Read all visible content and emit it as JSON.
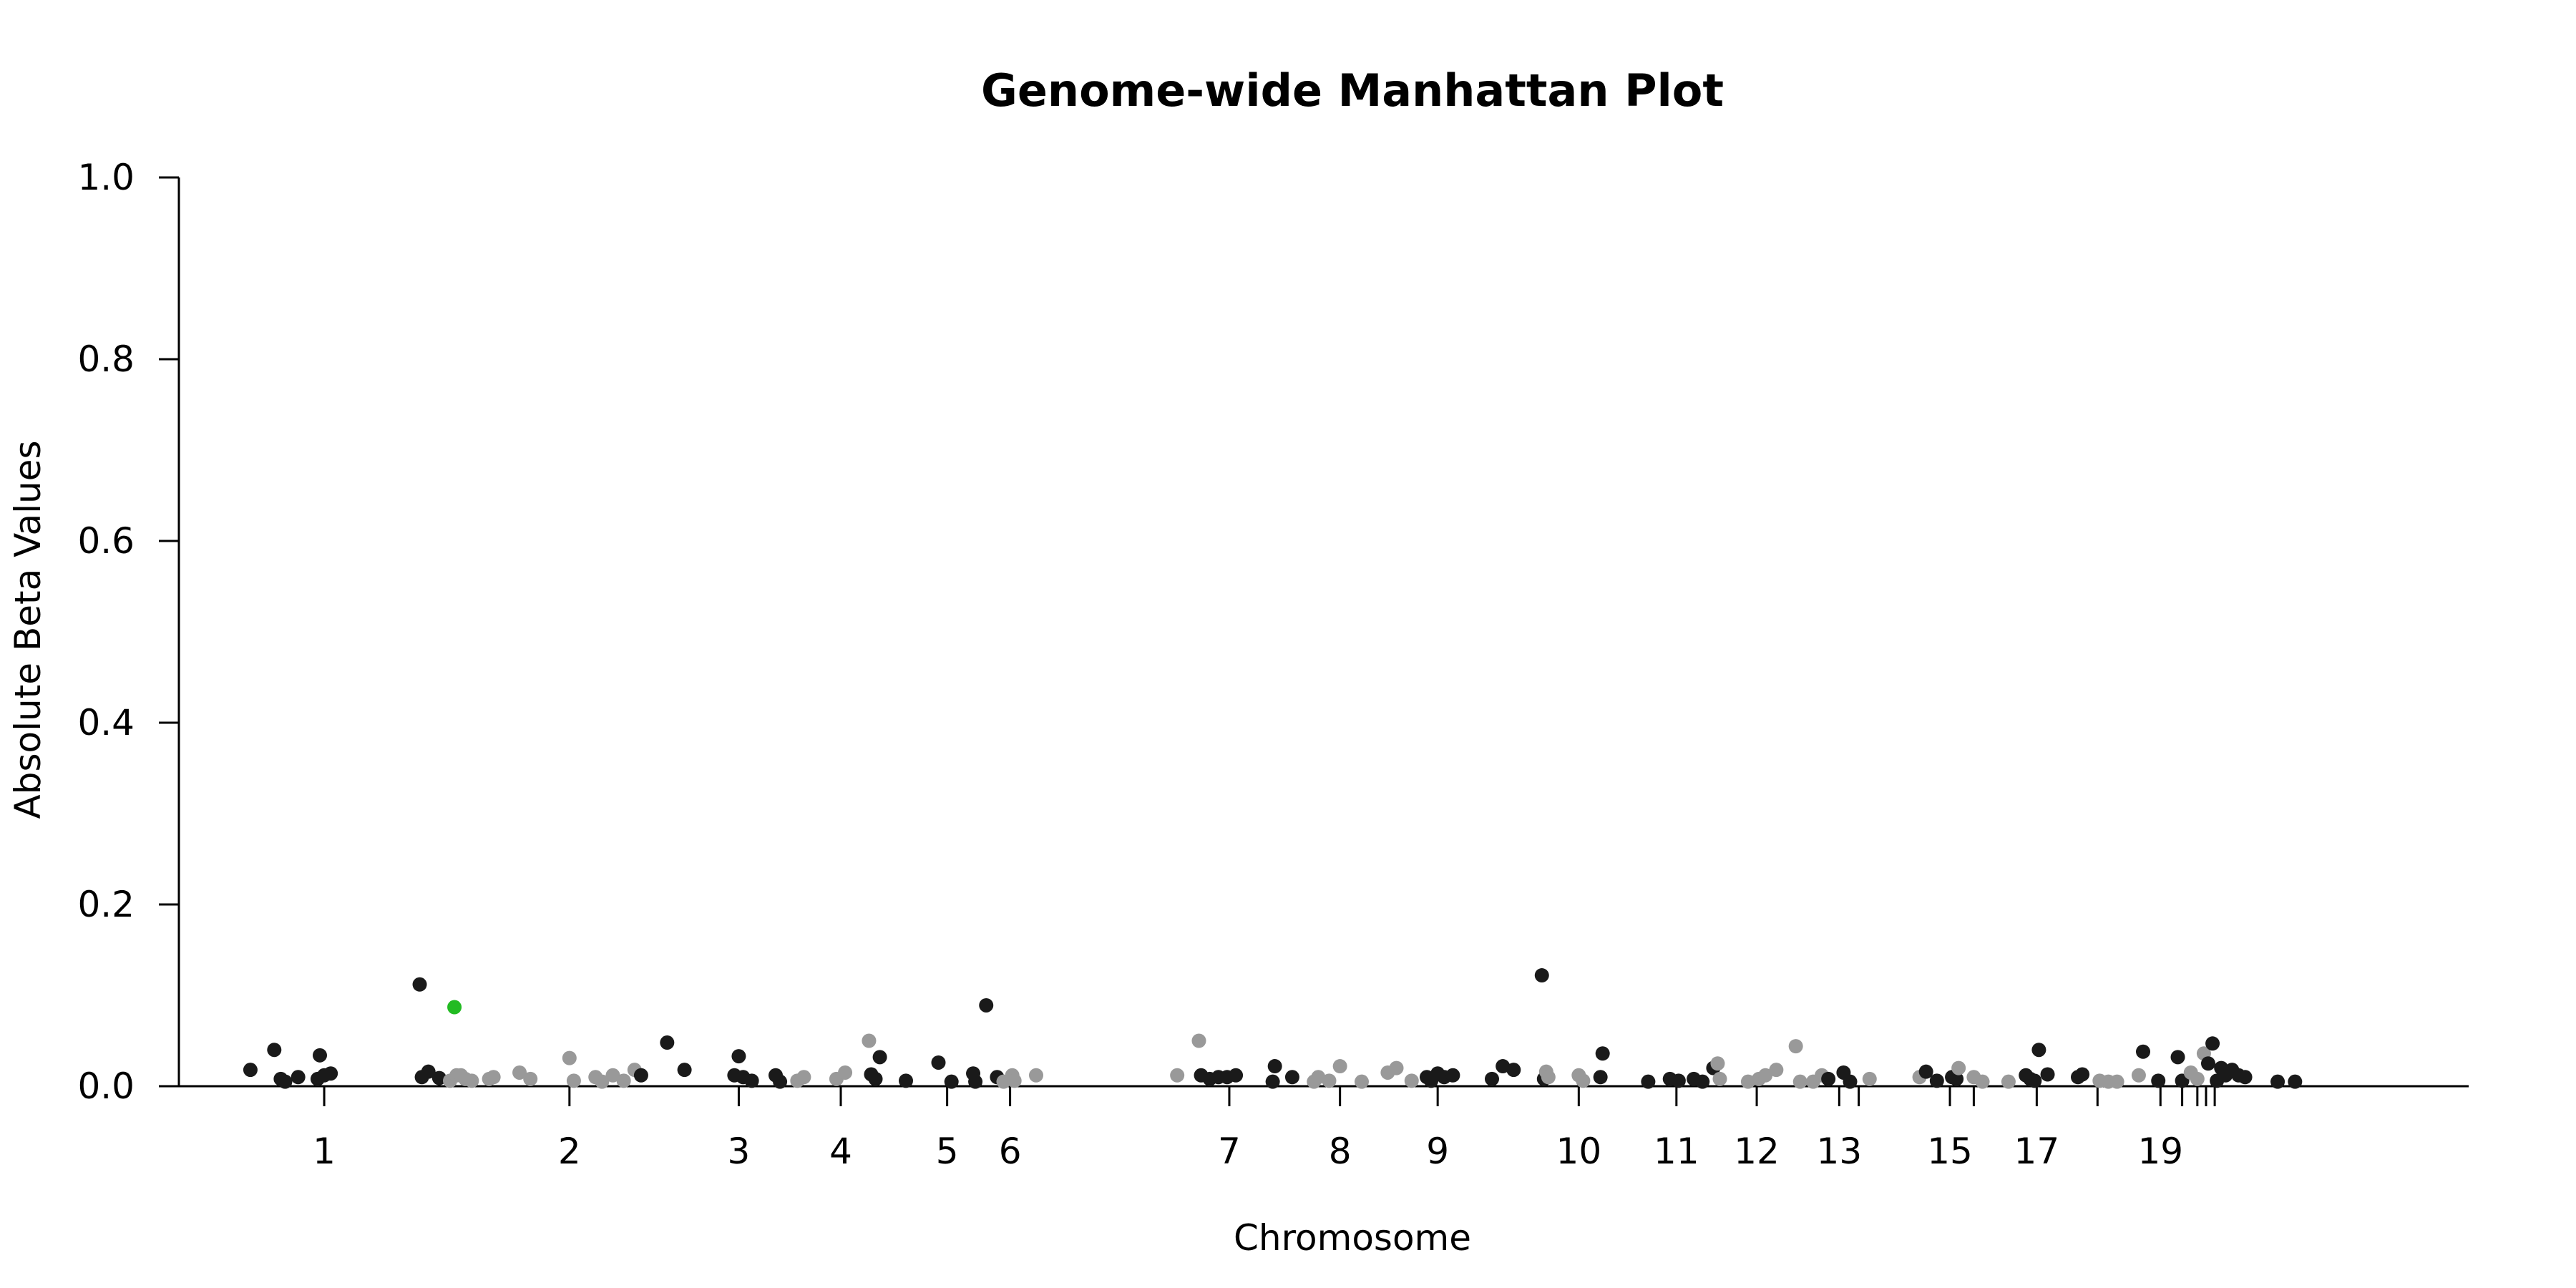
{
  "chart_data": {
    "type": "scatter",
    "title": "Genome-wide Manhattan Plot",
    "xlabel": "Chromosome",
    "ylabel": "Absolute Beta Values",
    "ylim": [
      0,
      1.0
    ],
    "yticks": [
      "0.0",
      "0.2",
      "0.4",
      "0.6",
      "0.8",
      "1.0"
    ],
    "xlim": [
      0,
      1050
    ],
    "grid": false,
    "legend": "none",
    "colors": {
      "odd": "#1a1a1a",
      "even": "#999999",
      "highlight": "#22bb22"
    },
    "chromosome_ticks": [
      {
        "label": "1",
        "pos": 62
      },
      {
        "label": "2",
        "pos": 175
      },
      {
        "label": "3",
        "pos": 253
      },
      {
        "label": "4",
        "pos": 300
      },
      {
        "label": "5",
        "pos": 349
      },
      {
        "label": "6",
        "pos": 378
      },
      {
        "label": "7",
        "pos": 479
      },
      {
        "label": "8",
        "pos": 530
      },
      {
        "label": "9",
        "pos": 575
      },
      {
        "label": "10",
        "pos": 640
      },
      {
        "label": "11",
        "pos": 685
      },
      {
        "label": "12",
        "pos": 722
      },
      {
        "label": "13",
        "pos": 760
      },
      {
        "label": "",
        "pos": 769
      },
      {
        "label": "15",
        "pos": 811
      },
      {
        "label": "",
        "pos": 822
      },
      {
        "label": "17",
        "pos": 851
      },
      {
        "label": "",
        "pos": 879
      },
      {
        "label": "19",
        "pos": 908
      },
      {
        "label": "",
        "pos": 918
      },
      {
        "label": "",
        "pos": 925
      },
      {
        "label": "",
        "pos": 929
      },
      {
        "label": "",
        "pos": 933
      }
    ],
    "points": [
      [
        28,
        0.018,
        1
      ],
      [
        39,
        0.04,
        1
      ],
      [
        42,
        0.008,
        1
      ],
      [
        44,
        0.005,
        1
      ],
      [
        50,
        0.01,
        1
      ],
      [
        59,
        0.008,
        1
      ],
      [
        60,
        0.034,
        1
      ],
      [
        62,
        0.012,
        1
      ],
      [
        65,
        0.014,
        1
      ],
      [
        106,
        0.112,
        1
      ],
      [
        107,
        0.01,
        1
      ],
      [
        110,
        0.016,
        1
      ],
      [
        115,
        0.009,
        1
      ],
      [
        120,
        0.006,
        2
      ],
      [
        122,
        0.087,
        3
      ],
      [
        123,
        0.012,
        2
      ],
      [
        125,
        0.012,
        2
      ],
      [
        127,
        0.008,
        2
      ],
      [
        130,
        0.006,
        2
      ],
      [
        138,
        0.008,
        2
      ],
      [
        140,
        0.01,
        2
      ],
      [
        152,
        0.015,
        2
      ],
      [
        157,
        0.008,
        2
      ],
      [
        175,
        0.031,
        2
      ],
      [
        177,
        0.006,
        2
      ],
      [
        187,
        0.01,
        2
      ],
      [
        190,
        0.005,
        2
      ],
      [
        195,
        0.012,
        2
      ],
      [
        200,
        0.006,
        2
      ],
      [
        205,
        0.018,
        2
      ],
      [
        208,
        0.012,
        1
      ],
      [
        220,
        0.048,
        1
      ],
      [
        228,
        0.018,
        1
      ],
      [
        251,
        0.012,
        1
      ],
      [
        253,
        0.033,
        1
      ],
      [
        255,
        0.01,
        1
      ],
      [
        259,
        0.006,
        1
      ],
      [
        270,
        0.012,
        1
      ],
      [
        272,
        0.005,
        1
      ],
      [
        280,
        0.006,
        2
      ],
      [
        283,
        0.01,
        2
      ],
      [
        298,
        0.008,
        2
      ],
      [
        302,
        0.015,
        2
      ],
      [
        313,
        0.05,
        2
      ],
      [
        314,
        0.013,
        1
      ],
      [
        316,
        0.008,
        1
      ],
      [
        318,
        0.032,
        1
      ],
      [
        330,
        0.006,
        1
      ],
      [
        345,
        0.026,
        1
      ],
      [
        351,
        0.005,
        1
      ],
      [
        361,
        0.014,
        1
      ],
      [
        362,
        0.005,
        1
      ],
      [
        367,
        0.089,
        1
      ],
      [
        372,
        0.01,
        1
      ],
      [
        375,
        0.005,
        2
      ],
      [
        379,
        0.012,
        2
      ],
      [
        390,
        0.012,
        2
      ],
      [
        380,
        0.006,
        2
      ],
      [
        455,
        0.012,
        2
      ],
      [
        465,
        0.05,
        2
      ],
      [
        466,
        0.012,
        1
      ],
      [
        470,
        0.008,
        1
      ],
      [
        474,
        0.01,
        1
      ],
      [
        478,
        0.01,
        1
      ],
      [
        482,
        0.012,
        1
      ],
      [
        499,
        0.005,
        1
      ],
      [
        500,
        0.022,
        1
      ],
      [
        508,
        0.01,
        1
      ],
      [
        518,
        0.005,
        2
      ],
      [
        520,
        0.01,
        2
      ],
      [
        525,
        0.006,
        2
      ],
      [
        530,
        0.022,
        2
      ],
      [
        540,
        0.005,
        2
      ],
      [
        552,
        0.015,
        2
      ],
      [
        556,
        0.02,
        2
      ],
      [
        563,
        0.006,
        2
      ],
      [
        570,
        0.01,
        1
      ],
      [
        572,
        0.006,
        1
      ],
      [
        575,
        0.014,
        1
      ],
      [
        578,
        0.01,
        1
      ],
      [
        582,
        0.012,
        1
      ],
      [
        600,
        0.008,
        1
      ],
      [
        605,
        0.022,
        1
      ],
      [
        610,
        0.018,
        1
      ],
      [
        623,
        0.122,
        1
      ],
      [
        624,
        0.008,
        1
      ],
      [
        625,
        0.016,
        2
      ],
      [
        626,
        0.01,
        2
      ],
      [
        640,
        0.012,
        2
      ],
      [
        642,
        0.006,
        2
      ],
      [
        650,
        0.01,
        1
      ],
      [
        651,
        0.036,
        1
      ],
      [
        672,
        0.005,
        1
      ],
      [
        682,
        0.008,
        1
      ],
      [
        686,
        0.006,
        1
      ],
      [
        693,
        0.008,
        1
      ],
      [
        697,
        0.005,
        1
      ],
      [
        702,
        0.02,
        1
      ],
      [
        704,
        0.025,
        2
      ],
      [
        705,
        0.008,
        2
      ],
      [
        718,
        0.005,
        2
      ],
      [
        723,
        0.008,
        2
      ],
      [
        726,
        0.012,
        2
      ],
      [
        731,
        0.018,
        2
      ],
      [
        740,
        0.044,
        2
      ],
      [
        742,
        0.005,
        2
      ],
      [
        748,
        0.005,
        2
      ],
      [
        752,
        0.012,
        2
      ],
      [
        755,
        0.008,
        1
      ],
      [
        762,
        0.015,
        1
      ],
      [
        765,
        0.005,
        1
      ],
      [
        774,
        0.008,
        2
      ],
      [
        797,
        0.01,
        2
      ],
      [
        800,
        0.016,
        1
      ],
      [
        805,
        0.006,
        1
      ],
      [
        812,
        0.01,
        1
      ],
      [
        814,
        0.008,
        1
      ],
      [
        815,
        0.02,
        2
      ],
      [
        822,
        0.01,
        2
      ],
      [
        826,
        0.005,
        2
      ],
      [
        838,
        0.005,
        2
      ],
      [
        846,
        0.012,
        1
      ],
      [
        848,
        0.008,
        1
      ],
      [
        850,
        0.006,
        1
      ],
      [
        852,
        0.04,
        1
      ],
      [
        856,
        0.013,
        1
      ],
      [
        870,
        0.01,
        1
      ],
      [
        872,
        0.013,
        1
      ],
      [
        880,
        0.006,
        2
      ],
      [
        884,
        0.005,
        2
      ],
      [
        888,
        0.005,
        2
      ],
      [
        898,
        0.012,
        2
      ],
      [
        900,
        0.038,
        1
      ],
      [
        907,
        0.006,
        1
      ],
      [
        916,
        0.032,
        1
      ],
      [
        918,
        0.006,
        1
      ],
      [
        922,
        0.015,
        2
      ],
      [
        925,
        0.008,
        2
      ],
      [
        928,
        0.036,
        2
      ],
      [
        930,
        0.025,
        1
      ],
      [
        932,
        0.047,
        1
      ],
      [
        934,
        0.006,
        1
      ],
      [
        936,
        0.02,
        1
      ],
      [
        938,
        0.012,
        1
      ],
      [
        941,
        0.018,
        1
      ],
      [
        944,
        0.012,
        1
      ],
      [
        947,
        0.01,
        1
      ],
      [
        962,
        0.005,
        1
      ],
      [
        970,
        0.005,
        1
      ]
    ]
  }
}
